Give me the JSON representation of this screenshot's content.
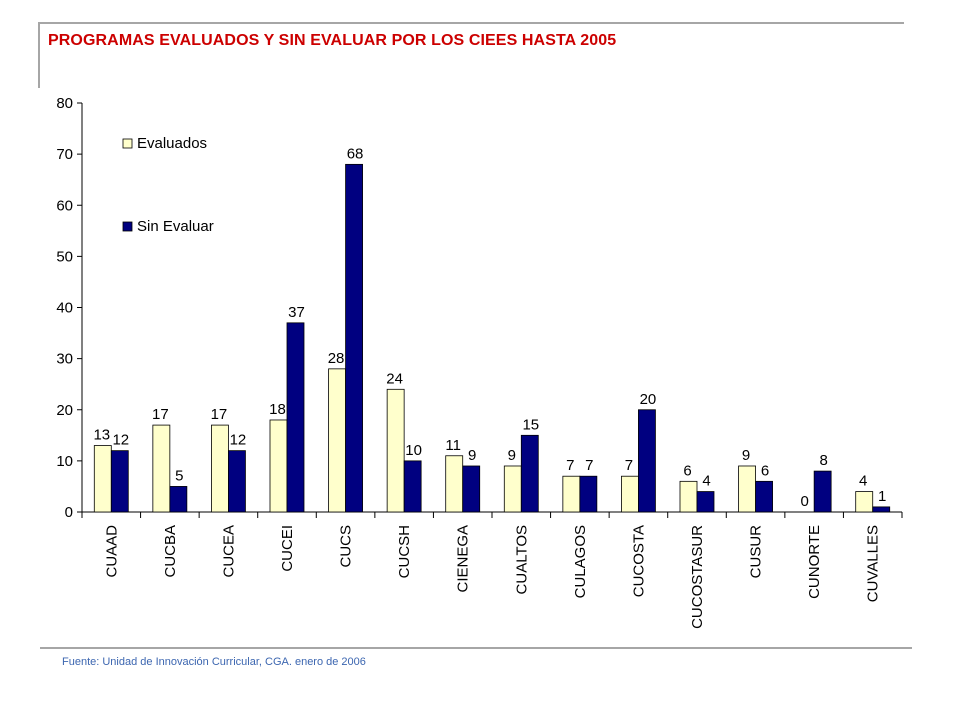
{
  "header": {
    "title": "PROGRAMAS EVALUADOS Y SIN EVALUAR POR LOS CIEES HASTA  2005"
  },
  "footer": {
    "source": "Fuente: Unidad de Innovación Curricular, CGA. enero de 2006"
  },
  "colors": {
    "title": "#cc0000",
    "source": "#3c66b0",
    "evaluados": "#ffffcc",
    "sin_evaluar": "#000080",
    "rules": "#a6a6a6"
  },
  "chart_data": {
    "type": "bar",
    "title": "",
    "xlabel": "",
    "ylabel": "",
    "ylim": [
      0,
      80
    ],
    "yticks": [
      0,
      10,
      20,
      30,
      40,
      50,
      60,
      70,
      80
    ],
    "grid": false,
    "legend_position": "top-left",
    "categories": [
      "CUAAD",
      "CUCBA",
      "CUCEA",
      "CUCEI",
      "CUCS",
      "CUCSH",
      "CIENEGA",
      "CUALTOS",
      "CULAGOS",
      "CUCOSTA",
      "CUCOSTASUR",
      "CUSUR",
      "CUNORTE",
      "CUVALLES"
    ],
    "series": [
      {
        "name": "Evaluados",
        "values": [
          13,
          17,
          17,
          18,
          28,
          24,
          11,
          9,
          7,
          7,
          6,
          9,
          0,
          4
        ]
      },
      {
        "name": "Sin Evaluar",
        "values": [
          12,
          5,
          12,
          37,
          68,
          10,
          9,
          15,
          7,
          20,
          4,
          6,
          8,
          1
        ]
      }
    ]
  }
}
